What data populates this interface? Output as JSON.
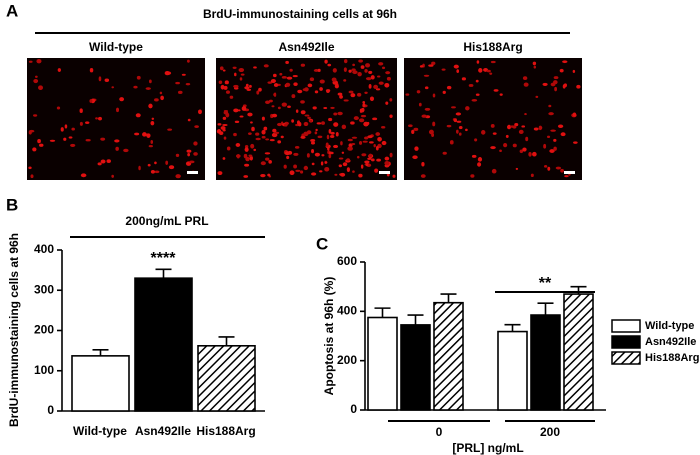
{
  "panel_a": {
    "letter": "A",
    "title": "BrdU-immunostaining cells at 96h",
    "images": [
      "Wild-type",
      "Asn492Ile",
      "His188Arg"
    ]
  },
  "chart_data": [
    {
      "type": "bar",
      "letter": "B",
      "title": "200ng/mL PRL",
      "y_label": "BrdU-immunostaining cells at 96h",
      "categories": [
        "Wild-type",
        "Asn492Ile",
        "His188Arg"
      ],
      "values": [
        137,
        330,
        162
      ],
      "errors": [
        15,
        22,
        22
      ],
      "colors": [
        "#ffffff",
        "#000000",
        "#ffffff"
      ],
      "hatched": [
        false,
        false,
        true
      ],
      "annotation": "****",
      "ylim": [
        0,
        400
      ],
      "yticks": [
        0,
        100,
        200,
        300,
        400
      ]
    },
    {
      "type": "grouped-bar",
      "letter": "C",
      "y_label": "Apoptosis at 96h (%)",
      "x_label": "[PRL] ng/mL",
      "categories": [
        "0",
        "200"
      ],
      "series": [
        {
          "name": "Wild-type",
          "color": "#ffffff",
          "hatched": false,
          "values": [
            375,
            318
          ],
          "errors": [
            38,
            28
          ]
        },
        {
          "name": "Asn492Ile",
          "color": "#000000",
          "hatched": false,
          "values": [
            345,
            385
          ],
          "errors": [
            40,
            48
          ]
        },
        {
          "name": "His188Arg",
          "color": "#ffffff",
          "hatched": true,
          "values": [
            435,
            470
          ],
          "errors": [
            35,
            30
          ]
        }
      ],
      "annotation": "**",
      "legend": "top-right",
      "ylim": [
        0,
        600
      ],
      "yticks": [
        0,
        200,
        400,
        600
      ]
    }
  ]
}
